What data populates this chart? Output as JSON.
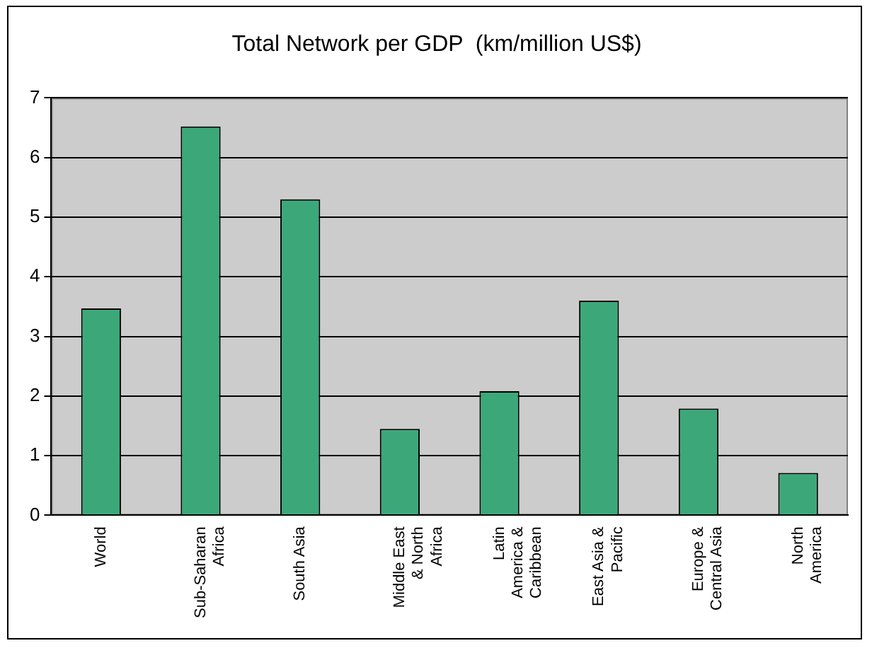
{
  "chart_data": {
    "type": "bar",
    "title": "Total Network per GDP  (km/million US$)",
    "categories": [
      "World",
      "Sub-Saharan Africa",
      "South Asia",
      "Middle East & North Africa",
      "Latin America & Caribbean",
      "East Asia & Pacific",
      "Europe & Central Asia",
      "North America"
    ],
    "values": [
      3.47,
      6.52,
      5.3,
      1.45,
      2.08,
      3.6,
      1.79,
      0.71
    ],
    "color": "#3ca87a",
    "ylim": [
      0,
      7
    ],
    "yticks": [
      0,
      1,
      2,
      3,
      4,
      5,
      6,
      7
    ],
    "grid": "y",
    "legend": false
  }
}
